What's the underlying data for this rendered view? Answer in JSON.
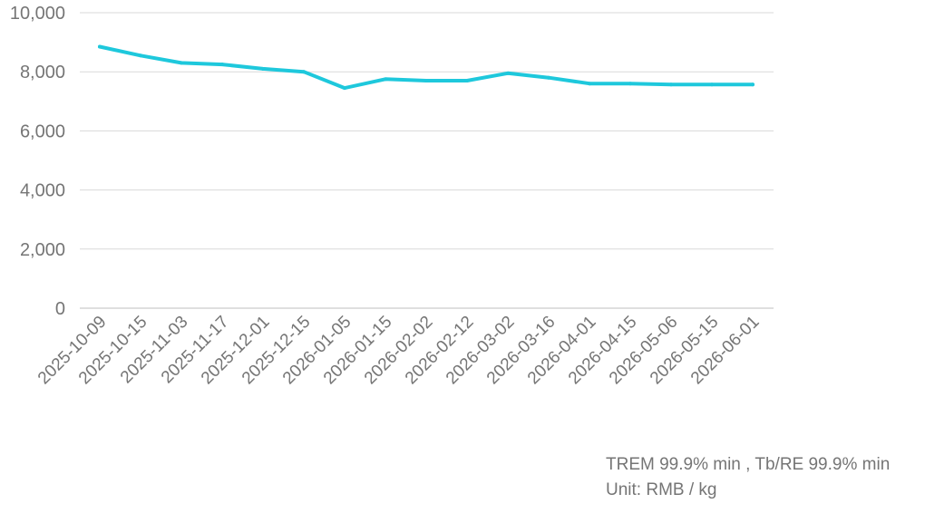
{
  "chart_data": {
    "type": "line",
    "title": "",
    "xlabel": "",
    "ylabel": "",
    "categories": [
      "2025-10-09",
      "2025-10-15",
      "2025-11-03",
      "2025-11-17",
      "2025-12-01",
      "2025-12-15",
      "2026-01-05",
      "2026-01-15",
      "2026-02-02",
      "2026-02-12",
      "2026-03-02",
      "2026-03-16",
      "2026-04-01",
      "2026-04-15",
      "2026-05-06",
      "2026-05-15",
      "2026-06-01"
    ],
    "series": [
      {
        "values": [
          8850,
          8550,
          8300,
          8250,
          8100,
          8000,
          7450,
          7750,
          7700,
          7700,
          7950,
          7800,
          7600,
          7600,
          7570,
          7570,
          7570
        ]
      }
    ],
    "ylim": [
      0,
      10000
    ],
    "yticks": [
      0,
      2000,
      4000,
      6000,
      8000,
      10000
    ],
    "ytick_labels": [
      "0",
      "2,000",
      "4,000",
      "6,000",
      "8,000",
      "10,000"
    ],
    "grid": true,
    "legend": "none",
    "line_color": "#1ec8dc"
  },
  "notes": {
    "line1": "TREM 99.9% min , Tb/RE 99.9% min",
    "line2": "Unit: RMB / kg"
  }
}
